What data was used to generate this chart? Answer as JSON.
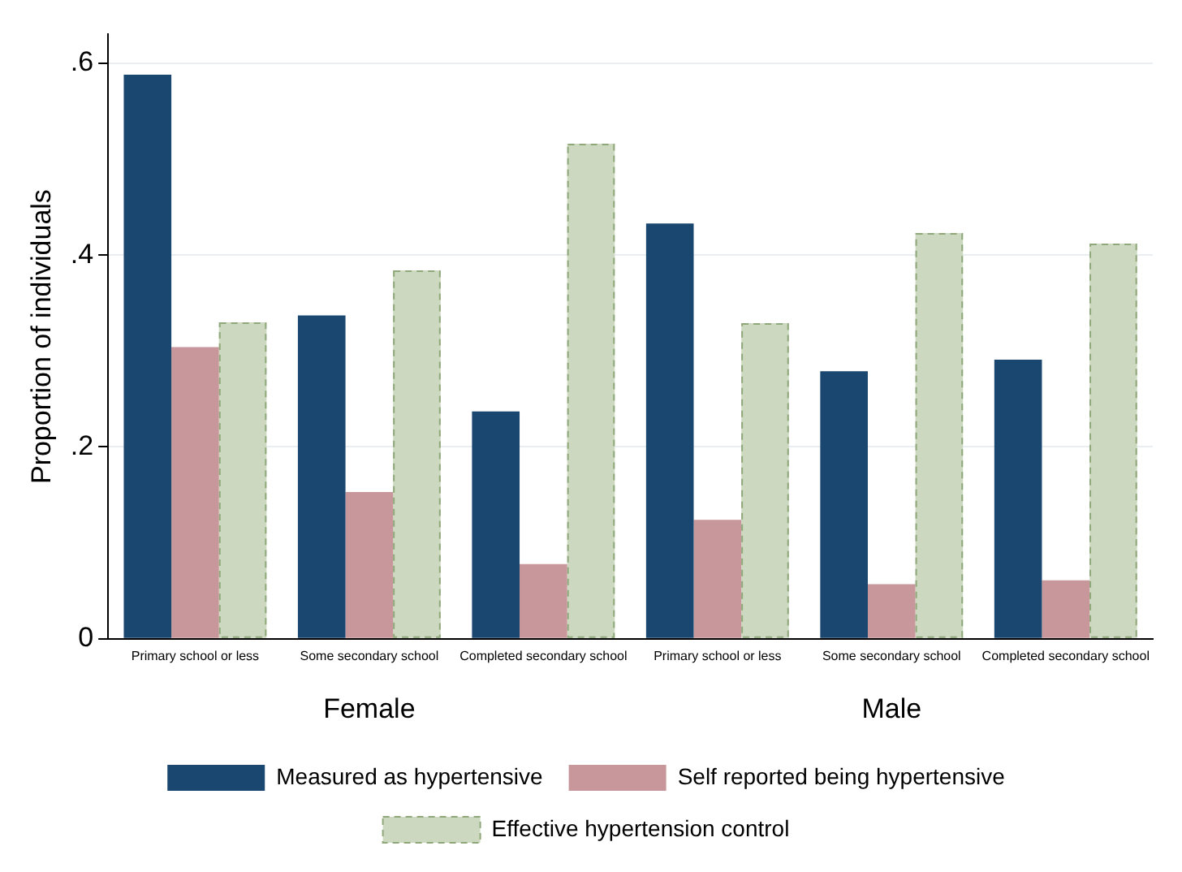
{
  "chart_data": {
    "type": "bar",
    "ylabel": "Proportion of individuals",
    "categories": [
      "Primary school or less",
      "Some secondary school",
      "Completed secondary school",
      "Primary school or less",
      "Some secondary school",
      "Completed secondary school"
    ],
    "series": [
      {
        "name": "Measured as hypertensive",
        "color": "#1a476f",
        "values": [
          0.588,
          0.337,
          0.237,
          0.433,
          0.279,
          0.291
        ]
      },
      {
        "name": "Self reported being hypertensive",
        "color": "#c8979b",
        "values": [
          0.304,
          0.153,
          0.078,
          0.124,
          0.057,
          0.061
        ]
      },
      {
        "name": "Effective hypertension control",
        "color": "#cdd8c0",
        "line_style": "dashed",
        "values": [
          0.33,
          0.384,
          0.516,
          0.329,
          0.423,
          0.412
        ]
      }
    ],
    "annotations": [
      "Female",
      "Male"
    ],
    "ylim": [
      0,
      0.63
    ],
    "yticks": [
      0,
      {
        "value": 0.2,
        "label": ".2"
      },
      {
        "value": 0.4,
        "label": ".4"
      },
      {
        "value": 0.6,
        "label": ".6"
      }
    ],
    "grid": "y",
    "legend": "bottom"
  }
}
